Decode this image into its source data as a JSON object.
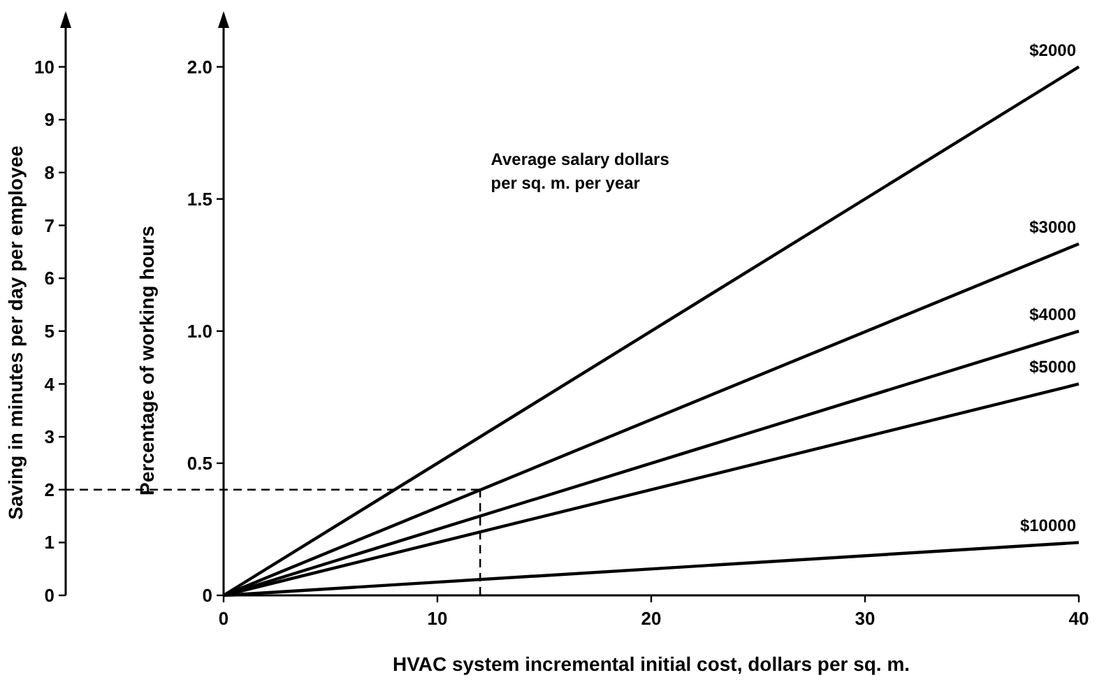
{
  "chart_data": {
    "type": "line",
    "xlabel": "HVAC system incremental initial cost, dollars per sq. m.",
    "ylabel": "Percentage of working hours",
    "y2label": "Saving in minutes per day per employee",
    "x": [
      0,
      40
    ],
    "series": [
      {
        "name": "$2000",
        "color": "#000000",
        "values": [
          0,
          2.0
        ]
      },
      {
        "name": "$3000",
        "color": "#000000",
        "values": [
          0,
          1.33
        ]
      },
      {
        "name": "$4000",
        "color": "#000000",
        "values": [
          0,
          1.0
        ]
      },
      {
        "name": "$5000",
        "color": "#000000",
        "values": [
          0,
          0.8
        ]
      },
      {
        "name": "$10000",
        "color": "#000000",
        "values": [
          0,
          0.2
        ]
      }
    ],
    "xlim": [
      0,
      40
    ],
    "xticks": [
      0,
      10,
      20,
      30,
      40
    ],
    "ylim": [
      0,
      2.2
    ],
    "yticks": [
      0,
      0.5,
      {
        "value": 1.0,
        "label": "1.0"
      },
      1.5,
      {
        "value": 2.0,
        "label": "2.0"
      }
    ],
    "y2lim": [
      0,
      11
    ],
    "y2ticks": [
      0,
      1,
      2,
      3,
      4,
      5,
      6,
      7,
      8,
      9,
      10
    ],
    "ref_lines": [
      {
        "axis": "y2",
        "value": 2,
        "color": "#000000",
        "line_style": "dashed"
      },
      {
        "axis": "x",
        "value": 12,
        "color": "#000000",
        "line_style": "dashed"
      }
    ],
    "annotations": [
      "Average salary dollars\nper sq. m. per year"
    ],
    "grid": false,
    "marker": "none",
    "line_style": "solid"
  }
}
